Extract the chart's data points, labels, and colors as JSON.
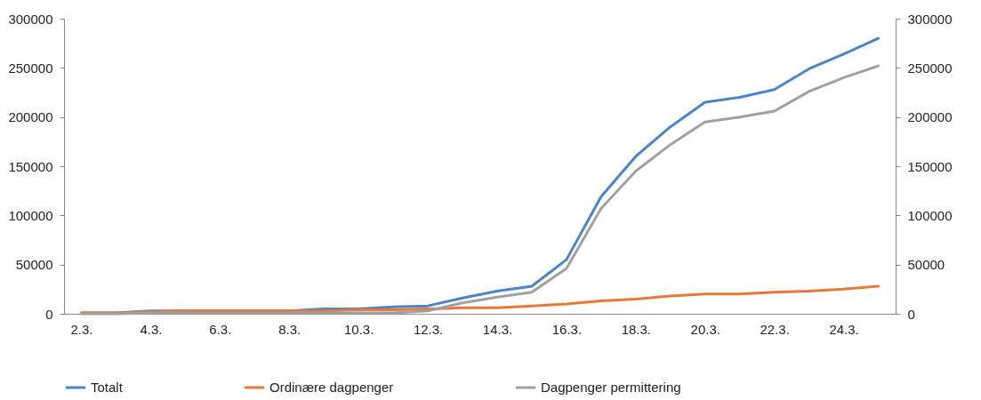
{
  "chart_data": {
    "type": "line",
    "categories": [
      "2.3.",
      null,
      "4.3.",
      null,
      "6.3.",
      null,
      "8.3.",
      null,
      "10.3.",
      null,
      "12.3.",
      null,
      "14.3.",
      null,
      "16.3.",
      null,
      "18.3.",
      null,
      "20.3.",
      null,
      "22.3.",
      null,
      "24.3.",
      null
    ],
    "series": [
      {
        "name": "Totalt",
        "color": "#4a86c5",
        "values": [
          1000,
          1000,
          3000,
          3000,
          3000,
          3000,
          3000,
          5000,
          5000,
          7000,
          8000,
          16000,
          23000,
          28000,
          55000,
          119000,
          160000,
          190000,
          215000,
          220000,
          228000,
          249000,
          264000,
          280000
        ]
      },
      {
        "name": "Ordinære dagpenger",
        "color": "#e8773a",
        "values": [
          1000,
          1000,
          2000,
          3000,
          3000,
          3000,
          3000,
          3000,
          4000,
          4000,
          5000,
          6000,
          6000,
          8000,
          10000,
          13000,
          15000,
          18000,
          20000,
          20000,
          22000,
          23000,
          25000,
          28000
        ]
      },
      {
        "name": "Dagpenger permittering",
        "color": "#a0a0a0",
        "values": [
          0,
          0,
          1000,
          1000,
          1000,
          1000,
          1000,
          1000,
          1000,
          1000,
          3000,
          11000,
          17000,
          22000,
          46000,
          107000,
          145000,
          172000,
          195000,
          200000,
          206000,
          226000,
          240000,
          252000
        ]
      }
    ],
    "ylim": [
      0,
      300000
    ],
    "yticks": [
      0,
      50000,
      100000,
      150000,
      200000,
      250000,
      300000
    ],
    "y2lim": [
      0,
      300000
    ],
    "y2ticks": [
      0,
      50000,
      100000,
      150000,
      200000,
      250000,
      300000
    ],
    "grid": false,
    "legend": "bottom",
    "line_style": "solid"
  }
}
